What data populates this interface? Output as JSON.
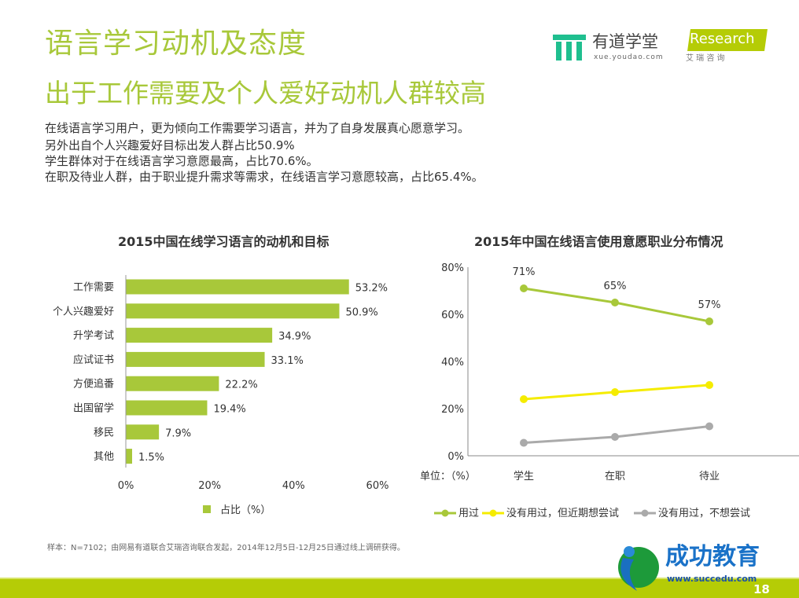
{
  "header": {
    "title": "语言学习动机及态度",
    "subtitle": "出于工作需要及个人爱好动机人群较高",
    "logo_youdao": {
      "name": "有道学堂",
      "url": "xue.youdao.com"
    },
    "logo_iresearch": {
      "name": "iResearch",
      "cn": "艾 瑞 咨 询"
    }
  },
  "description": [
    "在线语言学习用户，更为倾向工作需要学习语言，并为了自身发展真心愿意学习。",
    "另外出自个人兴趣爱好目标出发人群占比50.9%",
    "学生群体对于在线语言学习意愿最高，占比70.6%。",
    "在职及待业人群，由于职业提升需求等需求，在线语言学习意愿较高，占比65.4%。"
  ],
  "colors": {
    "accent": "#a8c83a",
    "bar": "#a8c83a",
    "series": [
      "#a8c83a",
      "#f5ec00",
      "#aaaaaa"
    ]
  },
  "chart_data": [
    {
      "type": "bar",
      "orientation": "horizontal",
      "title": "2015中国在线学习语言的动机和目标",
      "categories": [
        "工作需要",
        "个人兴趣爱好",
        "升学考试",
        "应试证书",
        "方便追番",
        "出国留学",
        "移民",
        "其他"
      ],
      "values": [
        53.2,
        50.9,
        34.9,
        33.1,
        22.2,
        19.4,
        7.9,
        1.5
      ],
      "data_labels": [
        "53.2%",
        "50.9%",
        "34.9%",
        "33.1%",
        "22.2%",
        "19.4%",
        "7.9%",
        "1.5%"
      ],
      "xlim": [
        0,
        60
      ],
      "xticks": [
        "0%",
        "20%",
        "40%",
        "60%"
      ],
      "legend": "占比（%）",
      "legend_position": "bottom",
      "grid": false
    },
    {
      "type": "line",
      "title": "2015年中国在线语言使用意愿职业分布情况",
      "categories": [
        "学生",
        "在职",
        "待业"
      ],
      "ylim": [
        0,
        80
      ],
      "yticks": [
        "0%",
        "20%",
        "40%",
        "60%",
        "80%"
      ],
      "unit_label": "单位：（%）",
      "series": [
        {
          "name": "用过",
          "values": [
            71,
            65,
            57
          ],
          "data_labels": [
            "71%",
            "65%",
            "57%"
          ]
        },
        {
          "name": "没有用过，但近期想尝试",
          "values": [
            24,
            27,
            30
          ]
        },
        {
          "name": "没有用过，不想尝试",
          "values": [
            5.5,
            8,
            12.5
          ]
        }
      ],
      "legend_position": "bottom",
      "grid": false
    }
  ],
  "footer": {
    "note": "样本：N=7102；由网易有道联合艾瑞咨询联合发起，2014年12月5日-12月25日通过线上调研获得。",
    "page": "18",
    "watermark": {
      "name": "成功教育",
      "url": "www.succedu.com"
    }
  }
}
